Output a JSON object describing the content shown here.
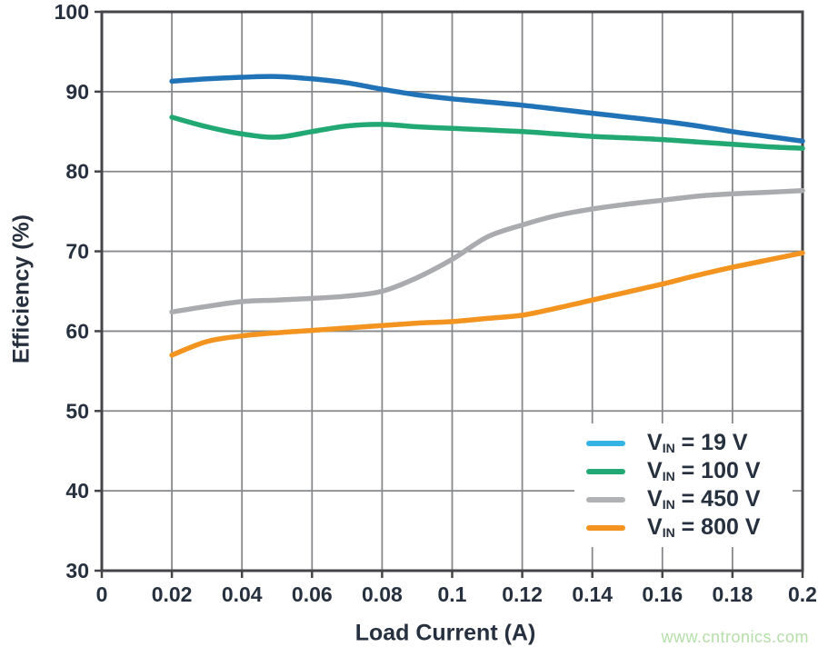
{
  "watermark": {
    "text": "www.cntronics.com",
    "color": "#b5dea8"
  },
  "style": {
    "background": "#ffffff",
    "border_color": "#454549",
    "grid_color": "#87888b",
    "tick_color": "#454549",
    "text_color": "#26303e",
    "curve_width": 5.5
  },
  "chart_data": {
    "type": "line",
    "title": "",
    "xlabel": "Load Current (A)",
    "ylabel": "Efficiency (%)",
    "xlim": [
      0,
      0.2
    ],
    "ylim": [
      30,
      100
    ],
    "grid": true,
    "legend_position": "lower right",
    "xticks": [
      0,
      0.02,
      0.04,
      0.06,
      0.08,
      0.1,
      0.12,
      0.14,
      0.16,
      0.18,
      0.2
    ],
    "xtick_labels": [
      "0",
      "0.02",
      "0.04",
      "0.06",
      "0.08",
      "0.1",
      "0.12",
      "0.14",
      "0.16",
      "0.18",
      "0.2"
    ],
    "yticks": [
      30,
      40,
      50,
      60,
      70,
      80,
      90,
      100
    ],
    "ytick_labels": [
      "30",
      "40",
      "50",
      "60",
      "70",
      "80",
      "90",
      "100"
    ],
    "x": [
      0.02,
      0.03,
      0.04,
      0.05,
      0.06,
      0.07,
      0.08,
      0.09,
      0.1,
      0.11,
      0.12,
      0.13,
      0.14,
      0.15,
      0.16,
      0.17,
      0.18,
      0.19,
      0.2
    ],
    "series": [
      {
        "name": "VIN = 19 V",
        "slug": "vin-19v",
        "legend": {
          "base": "V",
          "sub": "IN",
          "rest": " = 19 V"
        },
        "color": "#2173b8",
        "legend_color": "#36b3e5",
        "values": [
          91.3,
          91.6,
          91.8,
          91.9,
          91.6,
          91.1,
          90.3,
          89.6,
          89.1,
          88.7,
          88.3,
          87.8,
          87.3,
          86.8,
          86.3,
          85.7,
          85.0,
          84.4,
          83.8
        ]
      },
      {
        "name": "VIN = 100 V",
        "slug": "vin-100v",
        "legend": {
          "base": "V",
          "sub": "IN",
          "rest": " = 100 V"
        },
        "color": "#22a873",
        "legend_color": "#22a873",
        "values": [
          86.8,
          85.6,
          84.7,
          84.3,
          85.0,
          85.7,
          85.9,
          85.6,
          85.4,
          85.2,
          85.0,
          84.7,
          84.4,
          84.2,
          84.0,
          83.7,
          83.4,
          83.1,
          82.9
        ]
      },
      {
        "name": "VIN = 450 V",
        "slug": "vin-450v",
        "legend": {
          "base": "V",
          "sub": "IN",
          "rest": " = 450 V"
        },
        "color": "#a9abae",
        "legend_color": "#b0b2b4",
        "values": [
          62.4,
          63.1,
          63.7,
          63.9,
          64.1,
          64.4,
          65.0,
          66.7,
          69.0,
          71.8,
          73.3,
          74.5,
          75.3,
          75.9,
          76.4,
          76.9,
          77.2,
          77.4,
          77.6
        ]
      },
      {
        "name": "VIN = 800 V",
        "slug": "vin-800v",
        "legend": {
          "base": "V",
          "sub": "IN",
          "rest": " = 800 V"
        },
        "color": "#f2941f",
        "legend_color": "#f2941f",
        "values": [
          57.0,
          58.7,
          59.4,
          59.8,
          60.1,
          60.4,
          60.7,
          61.0,
          61.2,
          61.6,
          62.0,
          62.9,
          63.9,
          64.9,
          65.9,
          67.0,
          68.0,
          68.9,
          69.8
        ]
      }
    ]
  }
}
